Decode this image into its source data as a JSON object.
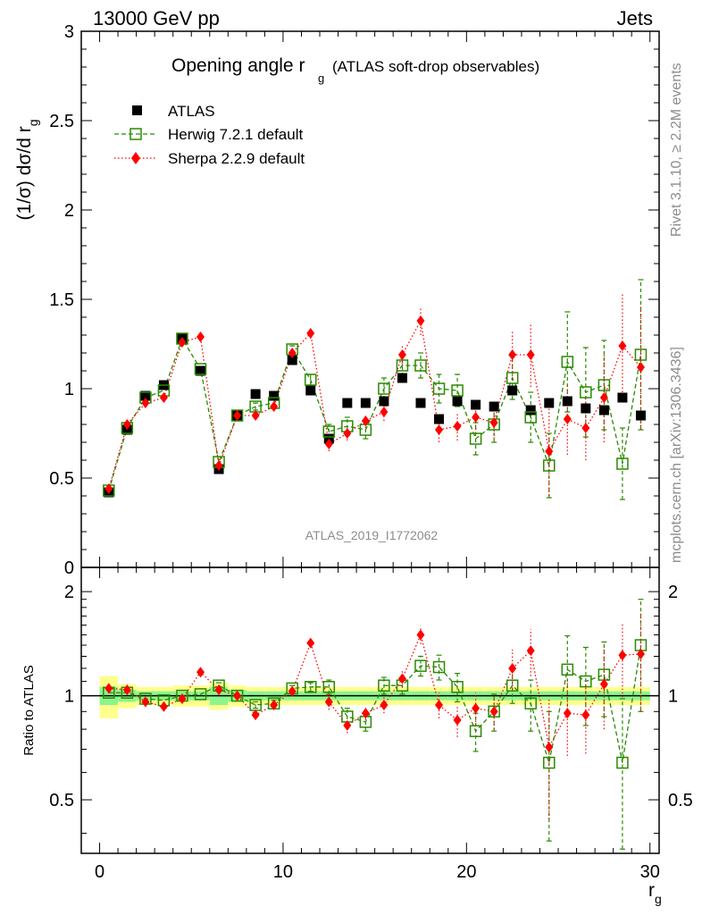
{
  "header": {
    "left": "13000 GeV pp",
    "right": "Jets"
  },
  "side_text": {
    "rivet": "Rivet 3.1.10, ≥ 2.2M events",
    "mcplots": "mcplots.cern.ch [arXiv:1306.3436]"
  },
  "colors": {
    "atlas": "#000000",
    "herwig": "#2a8a00",
    "sherpa": "#ff0000",
    "band_inner": "#8cf58c",
    "band_outer": "#ffff8c"
  },
  "chart_data": [
    {
      "type": "scatter",
      "title_main": "Opening angle r",
      "title_sub": "g",
      "title_rest": "(ATLAS soft-drop observables)",
      "ylabel_prefix": "(1/σ) dσ/d r",
      "ylabel_sub": "g",
      "watermark": "ATLAS_2019_I1772062",
      "xlim": [
        -1,
        30.5
      ],
      "ylim": [
        0,
        3
      ],
      "y_ticks": [
        "0.5",
        "1",
        "1.5",
        "2",
        "2.5",
        "3"
      ],
      "y_tick_values": [
        0.5,
        1,
        1.5,
        2,
        2.5,
        3
      ],
      "y_zero_label": "0",
      "legend_position": "top-left",
      "x": [
        0.5,
        1.5,
        2.5,
        3.5,
        4.5,
        5.5,
        6.5,
        7.5,
        8.5,
        9.5,
        10.5,
        11.5,
        12.5,
        13.5,
        14.5,
        15.5,
        16.5,
        17.5,
        18.5,
        19.5,
        20.5,
        21.5,
        22.5,
        23.5,
        24.5,
        25.5,
        26.5,
        27.5,
        28.5,
        29.5
      ],
      "series": [
        {
          "name": "ATLAS",
          "values": [
            0.42,
            0.77,
            0.96,
            1.02,
            1.28,
            1.1,
            0.55,
            0.85,
            0.97,
            0.96,
            1.16,
            0.99,
            0.72,
            0.92,
            0.92,
            0.93,
            1.06,
            0.92,
            0.83,
            0.93,
            0.91,
            0.9,
            0.99,
            0.88,
            0.92,
            0.93,
            0.89,
            0.88,
            0.95,
            0.85
          ]
        },
        {
          "name": "Herwig 7.2.1 default",
          "values": [
            0.43,
            0.78,
            0.95,
            0.99,
            1.28,
            1.11,
            0.59,
            0.85,
            0.9,
            0.92,
            1.22,
            1.05,
            0.76,
            0.79,
            0.77,
            1.0,
            1.13,
            1.13,
            1.0,
            0.99,
            0.72,
            0.8,
            1.06,
            0.84,
            0.57,
            1.15,
            0.98,
            1.02,
            0.58,
            1.19
          ],
          "errors": [
            0.01,
            0.01,
            0.01,
            0.01,
            0.01,
            0.01,
            0.01,
            0.01,
            0.02,
            0.02,
            0.02,
            0.03,
            0.04,
            0.05,
            0.05,
            0.06,
            0.06,
            0.07,
            0.08,
            0.09,
            0.09,
            0.1,
            0.12,
            0.14,
            0.18,
            0.28,
            0.25,
            0.25,
            0.2,
            0.42
          ]
        },
        {
          "name": "Sherpa 2.2.9 default",
          "values": [
            0.44,
            0.8,
            0.92,
            0.95,
            1.26,
            1.29,
            0.57,
            0.85,
            0.85,
            0.9,
            1.2,
            1.31,
            0.69,
            0.75,
            0.82,
            0.87,
            1.19,
            1.38,
            0.77,
            0.79,
            0.84,
            0.81,
            1.19,
            1.19,
            0.65,
            0.83,
            0.78,
            0.95,
            1.24,
            1.12
          ],
          "errors": [
            0.01,
            0.01,
            0.01,
            0.01,
            0.01,
            0.01,
            0.01,
            0.01,
            0.02,
            0.02,
            0.02,
            0.03,
            0.04,
            0.04,
            0.04,
            0.05,
            0.06,
            0.08,
            0.07,
            0.08,
            0.09,
            0.09,
            0.14,
            0.18,
            0.25,
            0.2,
            0.18,
            0.25,
            0.3,
            0.35
          ]
        }
      ]
    },
    {
      "type": "scatter",
      "ylabel": "Ratio to ATLAS",
      "xlabel_main": "r",
      "xlabel_sub": "g",
      "xlim": [
        -1,
        30.5
      ],
      "ylim": [
        0.35,
        2.35
      ],
      "x_ticks": [
        "0",
        "10",
        "20",
        "30"
      ],
      "x_tick_values": [
        0,
        10,
        20,
        30
      ],
      "y_ticks": [
        "0.5",
        "1",
        "2"
      ],
      "y_tick_values": [
        0.5,
        1,
        2
      ],
      "x": [
        0.5,
        1.5,
        2.5,
        3.5,
        4.5,
        5.5,
        6.5,
        7.5,
        8.5,
        9.5,
        10.5,
        11.5,
        12.5,
        13.5,
        14.5,
        15.5,
        16.5,
        17.5,
        18.5,
        19.5,
        20.5,
        21.5,
        22.5,
        23.5,
        24.5,
        25.5,
        26.5,
        27.5,
        28.5,
        29.5
      ],
      "band_inner": [
        0.06,
        0.04,
        0.03,
        0.03,
        0.03,
        0.03,
        0.06,
        0.04,
        0.03,
        0.03,
        0.03,
        0.03,
        0.03,
        0.03,
        0.03,
        0.03,
        0.03,
        0.03,
        0.03,
        0.03,
        0.03,
        0.03,
        0.03,
        0.03,
        0.03,
        0.03,
        0.03,
        0.03,
        0.03,
        0.03
      ],
      "band_outer": [
        0.14,
        0.08,
        0.06,
        0.06,
        0.07,
        0.07,
        0.09,
        0.07,
        0.06,
        0.06,
        0.06,
        0.06,
        0.06,
        0.06,
        0.06,
        0.06,
        0.06,
        0.06,
        0.06,
        0.06,
        0.06,
        0.06,
        0.06,
        0.06,
        0.06,
        0.06,
        0.06,
        0.06,
        0.06,
        0.06
      ],
      "series": [
        {
          "name": "Herwig 7.2.1 default",
          "values": [
            1.02,
            1.02,
            0.98,
            0.97,
            1.0,
            1.01,
            1.07,
            1.0,
            0.94,
            0.95,
            1.05,
            1.06,
            1.06,
            0.87,
            0.84,
            1.07,
            1.07,
            1.22,
            1.21,
            1.06,
            0.79,
            0.9,
            1.07,
            0.95,
            0.64,
            1.19,
            1.1,
            1.15,
            0.64,
            1.4
          ],
          "errors": [
            0.01,
            0.01,
            0.01,
            0.01,
            0.01,
            0.01,
            0.02,
            0.01,
            0.02,
            0.02,
            0.02,
            0.03,
            0.05,
            0.05,
            0.05,
            0.06,
            0.06,
            0.08,
            0.1,
            0.1,
            0.1,
            0.11,
            0.12,
            0.16,
            0.26,
            0.3,
            0.28,
            0.28,
            0.34,
            0.5
          ]
        },
        {
          "name": "Sherpa 2.2.9 default",
          "values": [
            1.05,
            1.04,
            0.96,
            0.93,
            0.98,
            1.17,
            1.04,
            1.0,
            0.88,
            0.94,
            1.03,
            1.42,
            0.96,
            0.82,
            0.89,
            0.94,
            1.12,
            1.5,
            0.94,
            0.85,
            0.92,
            0.9,
            1.2,
            1.35,
            0.71,
            0.89,
            0.88,
            1.08,
            1.31,
            1.32
          ],
          "errors": [
            0.01,
            0.01,
            0.01,
            0.01,
            0.01,
            0.01,
            0.02,
            0.01,
            0.02,
            0.02,
            0.02,
            0.03,
            0.05,
            0.04,
            0.04,
            0.05,
            0.06,
            0.09,
            0.08,
            0.09,
            0.1,
            0.1,
            0.16,
            0.21,
            0.27,
            0.22,
            0.2,
            0.28,
            0.32,
            0.42
          ]
        }
      ]
    }
  ]
}
